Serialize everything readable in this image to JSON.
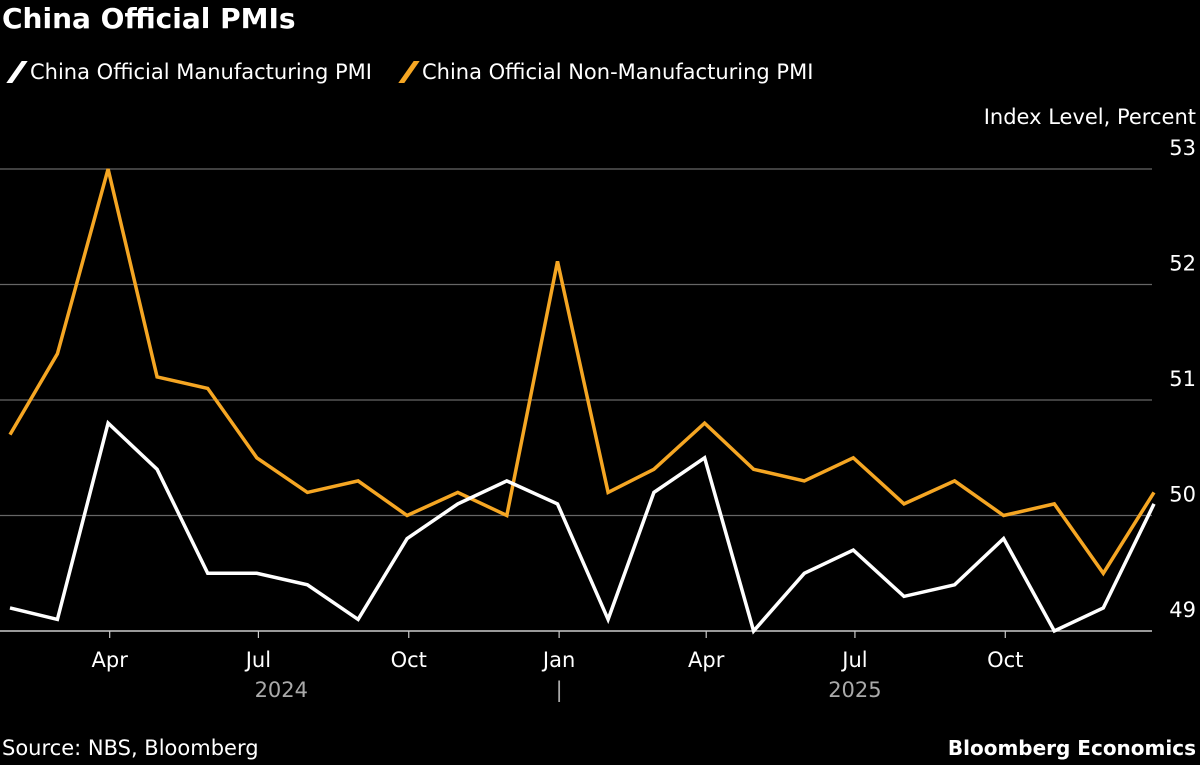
{
  "chart_data": {
    "type": "line",
    "title": "China Official PMIs",
    "ylabel": "Index Level, Percent",
    "ylim": [
      49,
      53
    ],
    "yticks": [
      49,
      50,
      51,
      52,
      53
    ],
    "grid": true,
    "legend_placement": "top-left",
    "x": [
      "2024-01-31",
      "2024-02-29",
      "2024-03-31",
      "2024-04-30",
      "2024-05-31",
      "2024-06-30",
      "2024-07-31",
      "2024-08-31",
      "2024-09-30",
      "2024-10-31",
      "2024-11-30",
      "2024-12-31",
      "2025-01-31",
      "2025-02-28",
      "2025-03-31",
      "2025-04-30",
      "2025-05-31",
      "2025-06-30",
      "2025-07-31",
      "2025-08-31",
      "2025-09-30",
      "2025-10-31",
      "2025-11-30",
      "2025-12-31"
    ],
    "xticks": [
      {
        "date": "2024-04-01",
        "label": "Apr"
      },
      {
        "date": "2024-07-01",
        "label": "Jul"
      },
      {
        "date": "2024-10-01",
        "label": "Oct"
      },
      {
        "date": "2025-01-01",
        "label": "Jan"
      },
      {
        "date": "2025-04-01",
        "label": "Apr"
      },
      {
        "date": "2025-07-01",
        "label": "Jul"
      },
      {
        "date": "2025-10-01",
        "label": "Oct"
      }
    ],
    "year_labels": [
      {
        "date": "2024-07-15",
        "label": "2024"
      },
      {
        "date": "2025-07-01",
        "label": "2025"
      }
    ],
    "year_separator": {
      "date": "2025-01-01",
      "label": "|"
    },
    "series": [
      {
        "name": "China Official Manufacturing PMI",
        "color": "#ffffff",
        "values": [
          49.2,
          49.1,
          50.8,
          50.4,
          49.5,
          49.5,
          49.4,
          49.1,
          49.8,
          50.1,
          50.3,
          50.1,
          49.1,
          50.2,
          50.5,
          49.0,
          49.5,
          49.7,
          49.3,
          49.4,
          49.8,
          49.0,
          49.2,
          50.1
        ]
      },
      {
        "name": "China Official Non-Manufacturing PMI",
        "color": "#f5a623",
        "values": [
          50.7,
          51.4,
          53.0,
          51.2,
          51.1,
          50.5,
          50.2,
          50.3,
          50.0,
          50.2,
          50.0,
          52.2,
          50.2,
          50.4,
          50.8,
          50.4,
          50.3,
          50.5,
          50.1,
          50.3,
          50.0,
          50.1,
          49.5,
          50.2
        ]
      }
    ]
  },
  "footer": {
    "source": "Source: NBS, Bloomberg",
    "brand": "Bloomberg Economics"
  }
}
